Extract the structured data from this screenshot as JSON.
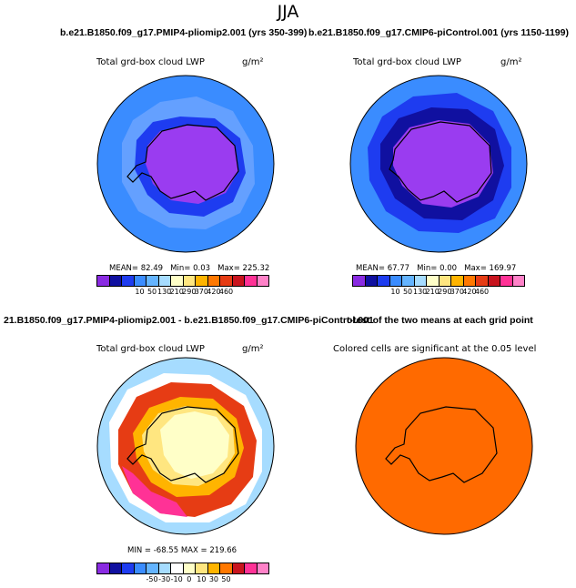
{
  "season": "JJA",
  "titles": {
    "run_a": "b.e21.B1850.f09_g17.PMIP4-pliomip2.001 (yrs 350-399)",
    "run_b": "b.e21.B1850.f09_g17.CMIP6-piControl.001 (yrs 1150-1199)",
    "diff": "21.B1850.f09_g17.PMIP4-pliomip2.001 - b.e21.B1850.f09_g17.CMIP6-piControl.001",
    "ttest": "t-test of the two means at each grid point"
  },
  "chart_data": [
    {
      "type": "heatmap",
      "title": "Total grd-box cloud LWP",
      "units": "g/m²",
      "stats": {
        "mean_label": "MEAN=",
        "mean": "82.49",
        "min_label": "Min=",
        "min": "0.03",
        "max_label": "Max=",
        "max": "225.32"
      },
      "colorbar_labels": [
        "10",
        "50",
        "130",
        "210",
        "290",
        "370",
        "420",
        "460"
      ],
      "colorbar_colors": [
        "#8a2be2",
        "#1010a0",
        "#1e3cf0",
        "#3a8cff",
        "#64b4ff",
        "#a6dcff",
        "#ffffc8",
        "#ffe680",
        "#ffb400",
        "#ff7800",
        "#e63c14",
        "#c8141e",
        "#ff3296",
        "#ff82c8"
      ]
    },
    {
      "type": "heatmap",
      "title": "Total grd-box cloud LWP",
      "units": "g/m²",
      "stats": {
        "mean_label": "MEAN=",
        "mean": "67.77",
        "min_label": "Min=",
        "min": "0.00",
        "max_label": "Max=",
        "max": "169.97"
      },
      "colorbar_labels": [
        "10",
        "50",
        "130",
        "210",
        "290",
        "370",
        "420",
        "460"
      ],
      "colorbar_colors": [
        "#8a2be2",
        "#1010a0",
        "#1e3cf0",
        "#3a8cff",
        "#64b4ff",
        "#a6dcff",
        "#ffffc8",
        "#ffe680",
        "#ffb400",
        "#ff7800",
        "#e63c14",
        "#c8141e",
        "#ff3296",
        "#ff82c8"
      ]
    },
    {
      "type": "heatmap",
      "title": "Total grd-box cloud LWP",
      "units": "g/m²",
      "stats": {
        "text": "MIN = -68.55 MAX = 219.66"
      },
      "colorbar_labels": [
        "-50",
        "-30",
        "-10",
        "0",
        "10",
        "30",
        "50"
      ],
      "colorbar_colors": [
        "#8a2be2",
        "#1010a0",
        "#1e3cf0",
        "#3a8cff",
        "#64b4ff",
        "#a6dcff",
        "#ffffff",
        "#ffffc8",
        "#ffe680",
        "#ffb400",
        "#ff7800",
        "#c8141e",
        "#ff3296",
        "#ff82c8"
      ]
    },
    {
      "type": "heatmap",
      "title": "Colored cells are significant at the 0.05 level",
      "fill_color": "#ff6a00"
    }
  ]
}
